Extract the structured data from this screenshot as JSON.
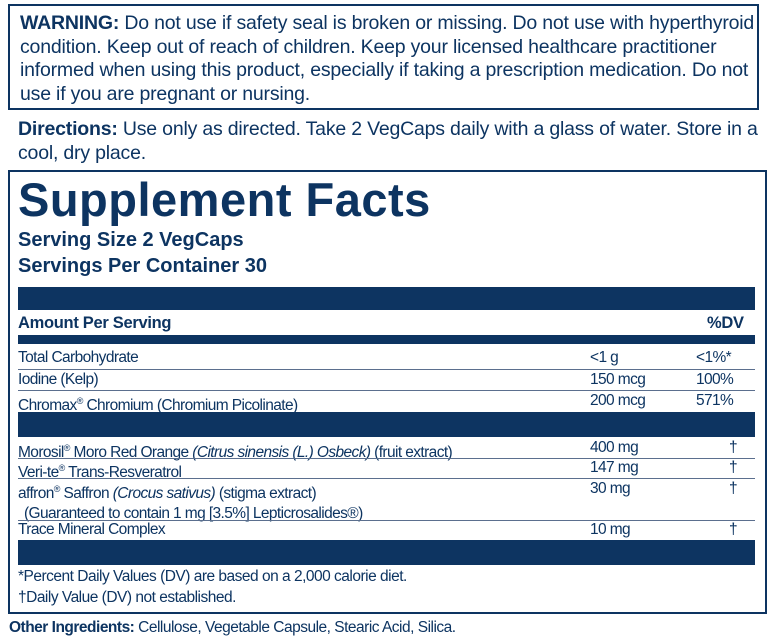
{
  "warning": {
    "label": "WARNING:",
    "text": " Do not use if safety seal is broken or missing. Do not use with hyperthyroid condition. Keep out of reach of children. Keep your licensed healthcare practitioner informed when using this product, especially if taking a prescription medication. Do not use if you are pregnant or nursing."
  },
  "directions": {
    "label": "Directions:",
    "text": " Use only as directed. Take 2 VegCaps daily with a glass of water. Store in a cool, dry place."
  },
  "facts": {
    "title": "Supplement Facts",
    "serving_size": "Serving Size 2 VegCaps",
    "servings_per_container": "Servings Per Container 30",
    "amount_header": "Amount Per Serving",
    "dv_header": "%DV",
    "group1": [
      {
        "name": "Total Carbohydrate",
        "amount": "<1 g",
        "dv": "<1%*"
      },
      {
        "name": "Iodine (Kelp)",
        "amount": "150 mcg",
        "dv": "100%"
      },
      {
        "name": "Chromax",
        "reg": "®",
        "rest": " Chromium (Chromium Picolinate)",
        "amount": "200 mcg",
        "dv": "571%"
      }
    ],
    "group2": [
      {
        "brand": "Morosil",
        "reg": "®",
        "plain": " Moro Red Orange ",
        "italic": "(Citrus sinensis (L.) Osbeck)",
        "tail": " (fruit extract)",
        "amount": "400 mg",
        "dv": "†"
      },
      {
        "brand": "Veri-te",
        "reg": "®",
        "plain": " Trans-Resveratrol",
        "italic": "",
        "tail": "",
        "amount": "147 mg",
        "dv": "†"
      },
      {
        "brand": "affron",
        "reg": "®",
        "plain": " Saffron ",
        "italic": "(Crocus sativus)",
        "tail": " (stigma extract)",
        "note": "(Guaranteed to contain 1 mg [3.5%] Lepticrosalides®)",
        "amount": "30 mg",
        "dv": "†"
      },
      {
        "brand": "Trace Mineral Complex",
        "reg": "",
        "plain": "",
        "italic": "",
        "tail": "",
        "amount": "10 mg",
        "dv": "†"
      }
    ],
    "footnote1": "*Percent Daily Values (DV) are based on a 2,000 calorie diet.",
    "footnote2": "†Daily Value (DV) not established."
  },
  "other_ingredients": {
    "label": "Other Ingredients:",
    "text": " Cellulose, Vegetable Capsule, Stearic Acid, Silica."
  },
  "colors": {
    "navy": "#0d3461"
  }
}
